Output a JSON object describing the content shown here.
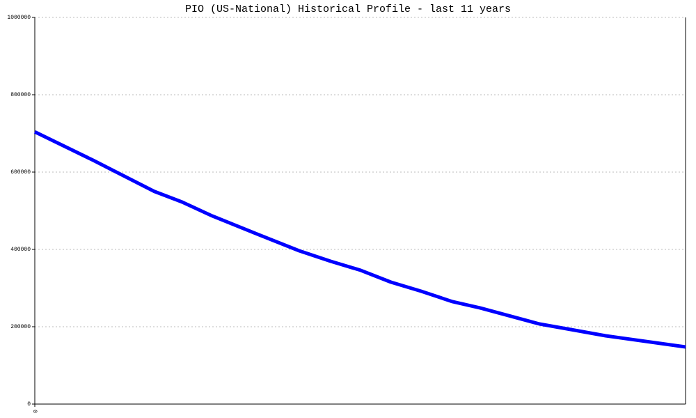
{
  "chart_data": {
    "type": "line",
    "title": "PIO (US-National) Historical Profile - last 11 years",
    "x": [
      0,
      0.98,
      2.02,
      2.49,
      3.0,
      3.79,
      4.47,
      5.0,
      5.51,
      6.02,
      6.53,
      7.06,
      7.53,
      8.53,
      9.06,
      9.65,
      11
    ],
    "series": [
      {
        "color": "#0000ff",
        "values": [
          704000,
          631000,
          550000,
          522500,
          486500,
          437800,
          396400,
          369400,
          345900,
          315300,
          291900,
          264900,
          248600,
          207200,
          192800,
          176600,
          147700
        ]
      }
    ],
    "xlim": [
      0,
      11
    ],
    "xticks": [
      0
    ],
    "ylim": [
      0,
      1000000
    ],
    "yticks": [
      0,
      200000,
      400000,
      600000,
      800000,
      1000000
    ],
    "grid": true
  }
}
